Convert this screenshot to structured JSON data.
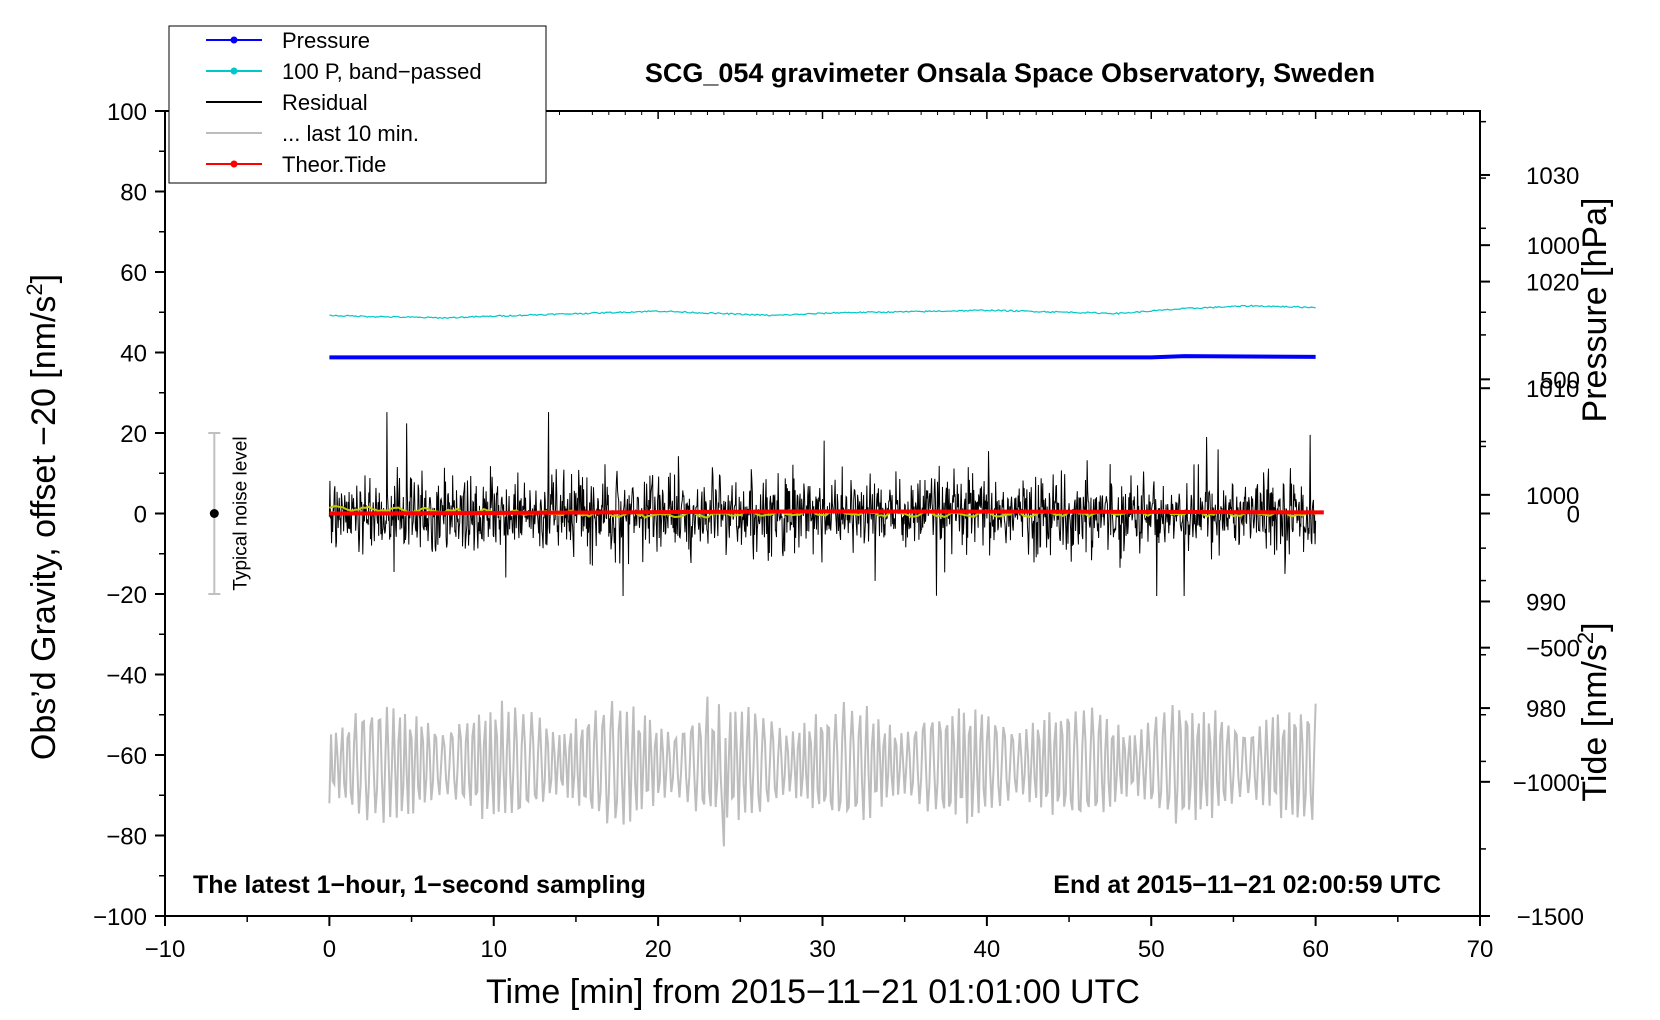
{
  "chart_data": {
    "type": "line",
    "title": "SCG_054 gravimeter Onsala Space Observatory, Sweden",
    "xlabel": "Time [min] from 2015−11−21 01:01:00 UTC",
    "ylabel_left_pre": "Obs’d Gravity, offset −20 [nm/s",
    "ylabel_left_sup": "2",
    "ylabel_left_post": "]",
    "ylabel_right_pressure": "Pressure [hPa]",
    "ylabel_right_tide_pre": "Tide [nm/s",
    "ylabel_right_tide_sup": "2",
    "ylabel_right_tide_post": "]",
    "xlim": [
      -10,
      70
    ],
    "ylim": [
      -100,
      100
    ],
    "pressure_lim": [
      960.5,
      1036
    ],
    "tide_lim": [
      -1500,
      1500
    ],
    "x_ticks": [
      -10,
      0,
      10,
      20,
      30,
      40,
      50,
      60,
      70
    ],
    "x_tick_labels": [
      "−10",
      "0",
      "10",
      "20",
      "30",
      "40",
      "50",
      "60",
      "70"
    ],
    "y_ticks": [
      100,
      80,
      60,
      40,
      20,
      0,
      -20,
      -40,
      -60,
      -80,
      -100
    ],
    "y_tick_labels": [
      "100",
      "80",
      "60",
      "40",
      "20",
      "0",
      "−20",
      "−40",
      "−60",
      "−80",
      "−100"
    ],
    "pressure_ticks": [
      1030,
      1020,
      1010,
      1000,
      990,
      980
    ],
    "pressure_tick_labels": [
      "1030",
      "1020",
      "1010",
      "1000",
      "990",
      "980"
    ],
    "tide_ticks": [
      1000,
      500,
      0,
      -500,
      -1000,
      -1500
    ],
    "tide_tick_labels": [
      "1000",
      "500",
      "0",
      "−500",
      "−1000",
      "−1500"
    ],
    "legend": [
      {
        "label": "Pressure",
        "color": "#0000ff",
        "marker": true
      },
      {
        "label": "100 P, band−passed",
        "color": "#00c8c8",
        "marker": true
      },
      {
        "label": "Residual",
        "color": "#000000",
        "marker": false
      },
      {
        "label": "... last 10 min.",
        "color": "#bdbdbd",
        "marker": false
      },
      {
        "label": "Theor.Tide",
        "color": "#ff0000",
        "marker": true
      }
    ],
    "legend_position": "top-left",
    "annotation_left": "The latest 1−hour, 1−second sampling",
    "annotation_right": "End at 2015−11−21 02:00:59 UTC",
    "noise_label": "Typical noise level",
    "noise_range": [
      -20,
      20
    ],
    "noise_x": -7,
    "series": [
      {
        "name": "Pressure",
        "color": "#0000ff",
        "axis": "left",
        "x": [
          0,
          10,
          20,
          30,
          40,
          50,
          52,
          60
        ],
        "values": [
          38.8,
          38.8,
          38.8,
          38.8,
          38.8,
          38.8,
          39.1,
          38.9
        ]
      },
      {
        "name": "100 P, band−passed",
        "color": "#00c8c8",
        "axis": "left",
        "x": [
          0,
          3,
          7,
          12,
          17,
          20,
          23,
          27,
          31,
          35,
          40,
          44,
          48,
          52,
          56,
          60
        ],
        "values": [
          49.2,
          48.9,
          48.6,
          49.3,
          49.9,
          50.3,
          49.8,
          49.2,
          49.9,
          50.1,
          50.5,
          50.1,
          49.7,
          50.9,
          51.6,
          51.2
        ]
      },
      {
        "name": "Residual",
        "color": "#000000",
        "axis": "left",
        "x": [
          0,
          60
        ],
        "amplitude": [
          -20.5,
          25.2
        ]
      },
      {
        "name": "Residual (smoothed)",
        "color": "#c8c800",
        "axis": "left",
        "x": [
          0,
          5,
          10,
          20,
          30,
          40,
          50,
          60
        ],
        "values": [
          1.5,
          0.8,
          0.3,
          -0.4,
          0.1,
          -0.3,
          0.2,
          -0.2
        ]
      },
      {
        "name": "... last 10 min.",
        "color": "#bdbdbd",
        "axis": "left",
        "x": [
          0,
          60
        ],
        "amplitude": [
          -82.7,
          -45.5
        ]
      },
      {
        "name": "Theor.Tide",
        "color": "#ff0000",
        "axis": "tide",
        "x": [
          0,
          10,
          20,
          30,
          40,
          50,
          60.5
        ],
        "values": [
          0,
          2,
          5,
          8,
          7,
          6,
          4
        ]
      }
    ]
  }
}
